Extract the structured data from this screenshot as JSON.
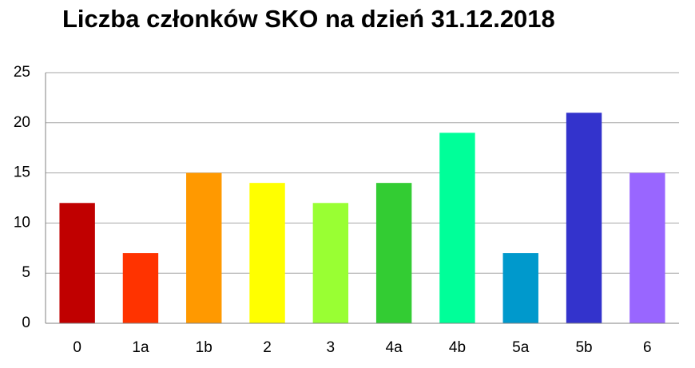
{
  "chart_data": {
    "type": "bar",
    "title": "Liczba członków SKO na dzień 31.12.2018",
    "categories": [
      "0",
      "1a",
      "1b",
      "2",
      "3",
      "4a",
      "4b",
      "5a",
      "5b",
      "6"
    ],
    "values": [
      12,
      7,
      15,
      14,
      12,
      14,
      19,
      7,
      21,
      15
    ],
    "colors": [
      "#c00000",
      "#ff3300",
      "#ff9900",
      "#ffff00",
      "#99ff33",
      "#33cc33",
      "#00ff99",
      "#0099cc",
      "#3333cc",
      "#9966ff"
    ],
    "ylim": [
      0,
      25
    ],
    "yticks": [
      0,
      5,
      10,
      15,
      20,
      25
    ],
    "grid": true
  }
}
